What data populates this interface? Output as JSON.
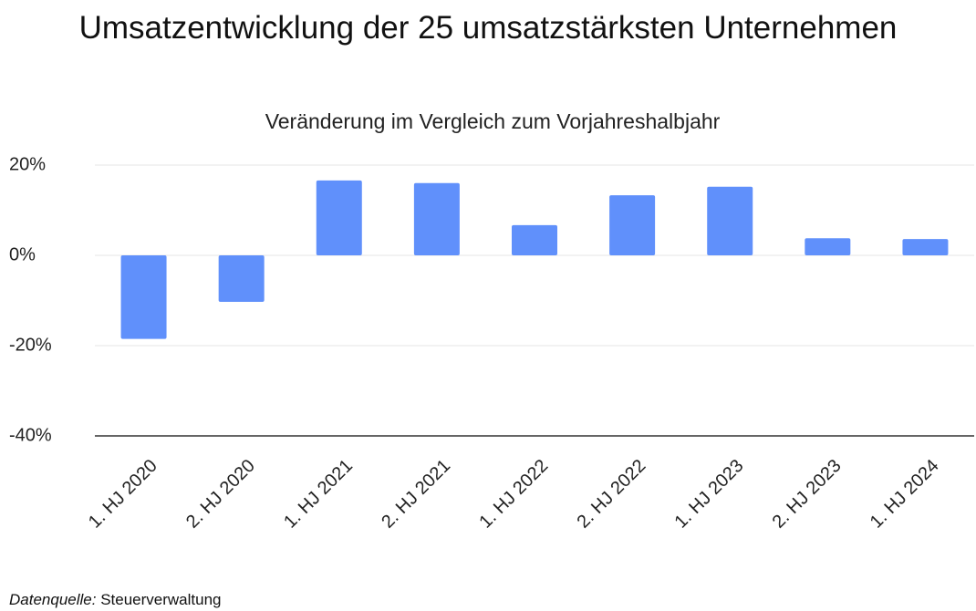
{
  "chart_data": {
    "type": "bar",
    "title": "Umsatzentwicklung der 25 umsatzstärksten Unternehmen",
    "subtitle": "Veränderung im Vergleich zum Vorjahreshalbjahr",
    "categories": [
      "1. HJ 2020",
      "2. HJ 2020",
      "1. HJ 2021",
      "2. HJ 2021",
      "1. HJ 2022",
      "2. HJ 2022",
      "1. HJ 2023",
      "2. HJ 2023",
      "1. HJ 2024"
    ],
    "values": [
      -18.5,
      -10.3,
      16.6,
      16,
      6.7,
      13.3,
      15.2,
      3.8,
      3.6
    ],
    "color": "#6090fb",
    "ylim": [
      -40,
      20
    ],
    "yticks": [
      {
        "value": -40,
        "label": "-40%"
      },
      {
        "value": -20,
        "label": "-20%"
      },
      {
        "value": 0,
        "label": "0%"
      },
      {
        "value": 20,
        "label": "20%"
      }
    ],
    "grid": true,
    "source_label": "Datenquelle:",
    "source": "Steuerverwaltung"
  }
}
